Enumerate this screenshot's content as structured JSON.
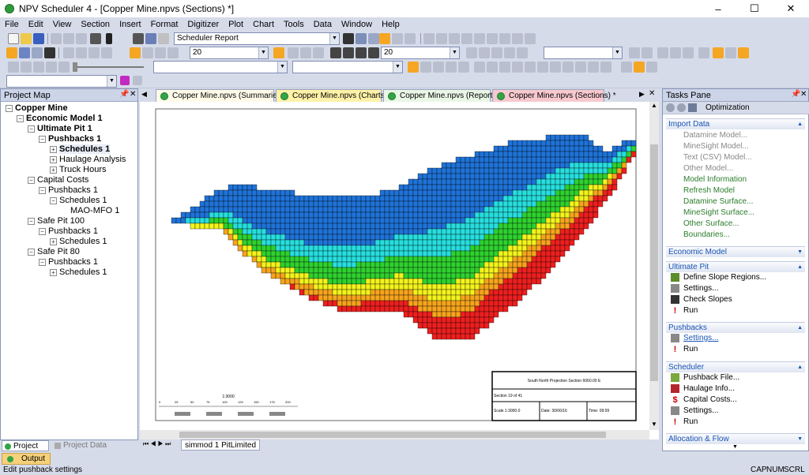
{
  "window": {
    "title": "NPV Scheduler 4 - [Copper Mine.npvs (Sections) *]",
    "minimize": "–",
    "maximize": "☐",
    "close": "✕"
  },
  "menu": [
    "File",
    "Edit",
    "View",
    "Section",
    "Insert",
    "Format",
    "Digitizer",
    "Plot",
    "Chart",
    "Tools",
    "Data",
    "Window",
    "Help"
  ],
  "toolbar": {
    "report_combo": "Scheduler Report",
    "zoom_combo1": "20",
    "zoom_combo2": "20",
    "combo3": "",
    "combo4": "",
    "combo5": "",
    "combo6": ""
  },
  "project_map": {
    "title": "Project Map",
    "nodes": [
      {
        "label": "Copper Mine",
        "bold": true
      },
      {
        "label": "Economic Model 1",
        "bold": true
      },
      {
        "label": "Ultimate Pit 1",
        "bold": true
      },
      {
        "label": "Pushbacks 1",
        "bold": true
      },
      {
        "label": "Schedules 1",
        "bold": true
      },
      {
        "label": "Haulage Analysis",
        "bold": false
      },
      {
        "label": "Truck Hours",
        "bold": false
      },
      {
        "label": "Capital Costs",
        "bold": false
      },
      {
        "label": "Pushbacks 1",
        "bold": false
      },
      {
        "label": "Schedules 1",
        "bold": false
      },
      {
        "label": "MAO-MFO 1",
        "bold": false
      },
      {
        "label": "Safe Pit 100",
        "bold": false
      },
      {
        "label": "Pushbacks 1",
        "bold": false
      },
      {
        "label": "Schedules 1",
        "bold": false
      },
      {
        "label": "Safe Pit 80",
        "bold": false
      },
      {
        "label": "Pushbacks 1",
        "bold": false
      },
      {
        "label": "Schedules 1",
        "bold": false
      }
    ],
    "tab_map": "Project Map",
    "tab_data": "Project Data"
  },
  "doc_tabs": [
    {
      "label": "Copper Mine.npvs (Summaries) *",
      "active": false
    },
    {
      "label": "Copper Mine.npvs (Charts) *",
      "active": false
    },
    {
      "label": "Copper Mine.npvs (Reports) *",
      "active": false
    },
    {
      "label": "Copper Mine.npvs (Sections) *",
      "active": true
    }
  ],
  "section": {
    "projection_title": "South North Projection Section 6060.00 E",
    "section_of": "Section 19 of 41",
    "scale": "Scale 1:3000.0",
    "date": "Date: 30/06/16",
    "time": "Time: 09:09",
    "scale_label": "1:3000",
    "scale_ticks": [
      "0",
      "25",
      "50",
      "75",
      "100",
      "125",
      "150",
      "175",
      "200"
    ]
  },
  "sheet_tab": "simmod 1 PitLimited",
  "tasks": {
    "title": "Tasks Pane",
    "optimization": "Optimization",
    "import_header": "Import Data",
    "import_items": [
      "Datamine Model...",
      "MineSight Model...",
      "Text (CSV) Model...",
      "Other Model..."
    ],
    "import_active_items": [
      "Model Information",
      "Refresh Model",
      "Datamine Surface...",
      "MineSight Surface...",
      "Other Surface...",
      "Boundaries..."
    ],
    "economic_header": "Economic Model",
    "ultimate_header": "Ultimate Pit",
    "ultimate_items": [
      "Define Slope Regions...",
      "Settings...",
      "Check Slopes",
      "Run"
    ],
    "pushbacks_header": "Pushbacks",
    "pushbacks_items": [
      "Settings...",
      "Run"
    ],
    "scheduler_header": "Scheduler",
    "scheduler_items": [
      "Pushback File...",
      "Haulage Info...",
      "Capital Costs...",
      "Settings...",
      "Run"
    ],
    "alloc_header": "Allocation & Flow"
  },
  "output_tab": "Output",
  "status": {
    "text": "Edit pushback settings",
    "cap": "CAP",
    "num": "NUM",
    "scrl": "SCRL"
  },
  "colors": {
    "blue": "#1f73d8",
    "cyan": "#27dede",
    "green": "#2fd12f",
    "yellow": "#f3f31d",
    "orange": "#f6a41d",
    "red": "#ee1f1f"
  }
}
